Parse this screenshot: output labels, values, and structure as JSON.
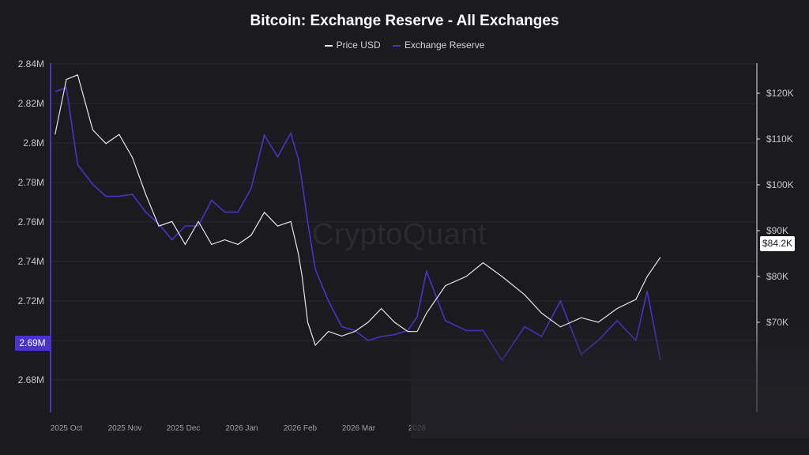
{
  "chart_data": {
    "type": "line",
    "title": "Bitcoin: Exchange Reserve - All Exchanges",
    "watermark": "CryptoQuant",
    "legend": {
      "placement": "top-center"
    },
    "grid": true,
    "x_ticks": [
      "2025 Oct",
      "2025 Nov",
      "2025 Dec",
      "2026 Jan",
      "2026 Feb",
      "2026 Mar",
      "2026"
    ],
    "x": [
      "2025-09-25",
      "2025-10-01",
      "2025-10-07",
      "2025-10-15",
      "2025-10-22",
      "2025-10-29",
      "2025-11-05",
      "2025-11-12",
      "2025-11-19",
      "2025-11-26",
      "2025-12-03",
      "2025-12-10",
      "2025-12-17",
      "2025-12-24",
      "2025-12-31",
      "2026-01-07",
      "2026-01-14",
      "2026-01-21",
      "2026-01-28",
      "2026-02-01",
      "2026-02-03",
      "2026-02-06",
      "2026-02-10",
      "2026-02-17",
      "2026-02-24",
      "2026-03-03",
      "2026-03-10",
      "2026-03-17",
      "2026-03-24",
      "2026-03-31",
      "2026-04-05",
      "2026-04-10",
      "2026-04-20",
      "2026-05-01",
      "2026-05-10",
      "2026-05-20",
      "2026-06-01",
      "2026-06-10",
      "2026-06-20",
      "2026-07-01",
      "2026-07-10",
      "2026-07-20",
      "2026-07-30",
      "2026-08-05",
      "2026-08-12"
    ],
    "left_axis": {
      "ticks": [
        "2.68M",
        "2.7M",
        "2.72M",
        "2.74M",
        "2.76M",
        "2.78M",
        "2.8M",
        "2.82M",
        "2.84M"
      ],
      "current_label": "2.69M"
    },
    "right_axis": {
      "ticks": [
        "$70K",
        "$80K",
        "$90K",
        "$100K",
        "$110K",
        "$120K"
      ],
      "current_label": "$84.2K"
    },
    "series": [
      {
        "name": "Price USD",
        "color": "#e6e6ea",
        "axis": "right",
        "values": [
          111,
          123,
          124,
          112,
          109,
          111,
          106,
          98,
          91,
          92,
          87,
          92,
          87,
          88,
          87,
          89,
          94,
          91,
          92,
          85,
          80,
          70,
          65,
          68,
          67,
          68,
          70,
          73,
          70,
          68,
          68,
          72,
          78,
          80,
          83,
          80,
          76,
          72,
          69,
          71,
          70,
          73,
          75,
          80,
          84.2
        ]
      },
      {
        "name": "Exchange Reserve",
        "color": "#4b32c8",
        "axis": "left",
        "values": [
          2.826,
          2.828,
          2.789,
          2.779,
          2.773,
          2.773,
          2.774,
          2.765,
          2.759,
          2.751,
          2.758,
          2.758,
          2.771,
          2.765,
          2.765,
          2.777,
          2.804,
          2.793,
          2.805,
          2.792,
          2.78,
          2.76,
          2.736,
          2.72,
          2.707,
          2.705,
          2.7,
          2.702,
          2.703,
          2.705,
          2.712,
          2.735,
          2.71,
          2.705,
          2.705,
          2.69,
          2.707,
          2.702,
          2.72,
          2.693,
          2.7,
          2.71,
          2.7,
          2.725,
          2.69
        ]
      }
    ]
  }
}
